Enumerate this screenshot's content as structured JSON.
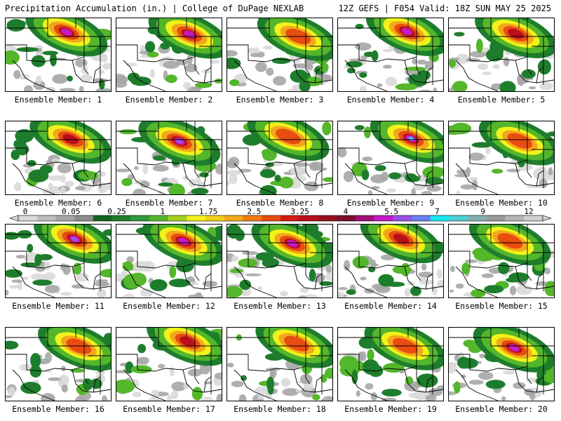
{
  "header": {
    "left": "Precipitation Accumulation (in.) | College of DuPage NEXLAB",
    "right": "12Z GEFS | F054 Valid: 18Z SUN MAY 25 2025"
  },
  "colorbar": {
    "tick_labels": [
      "0",
      "0.05",
      "0.25",
      "1",
      "1.75",
      "2.5",
      "3.25",
      "4",
      "5.5",
      "7",
      "9",
      "12"
    ],
    "colors": [
      "#d9d9d9",
      "#bfbfbf",
      "#a6a6a6",
      "#8c8c8c",
      "#12651f",
      "#1e7d2c",
      "#2e9a3c",
      "#54b62b",
      "#a3d11f",
      "#f2f21a",
      "#f2cf1a",
      "#f2a81a",
      "#f07c12",
      "#e84c0f",
      "#d61a14",
      "#b80f1a",
      "#96101e",
      "#7a1029",
      "#a1107a",
      "#c41ac4",
      "#9a50e6",
      "#6a7ff2",
      "#1ae6f2",
      "#4fcfcf",
      "#7fb0b0",
      "#9a9a9a",
      "#b5b5b5",
      "#d0d0d0"
    ]
  },
  "map": {
    "colors": {
      "g1": "#d9d9d9",
      "g2": "#a6a6a6",
      "green1": "#1e7d2c",
      "green2": "#54b62b",
      "yellow": "#f2f21a",
      "orange": "#f2a81a",
      "red": "#e84c0f",
      "darkred": "#b80f1a",
      "magenta": "#c41ac4",
      "purple": "#9a50e6",
      "cyan": "#1ae6f2",
      "boundary": "#000000"
    },
    "panels": [
      {
        "label": "Ensemble Member: 1",
        "max": 5.5
      },
      {
        "label": "Ensemble Member: 2",
        "max": 5.5
      },
      {
        "label": "Ensemble Member: 3",
        "max": 3.25
      },
      {
        "label": "Ensemble Member: 4",
        "max": 5.5
      },
      {
        "label": "Ensemble Member: 5",
        "max": 4
      },
      {
        "label": "Ensemble Member: 6",
        "max": 4
      },
      {
        "label": "Ensemble Member: 7",
        "max": 7
      },
      {
        "label": "Ensemble Member: 8",
        "max": 3.25
      },
      {
        "label": "Ensemble Member: 9",
        "max": 9
      },
      {
        "label": "Ensemble Member: 10",
        "max": 3.25
      },
      {
        "label": "Ensemble Member: 11",
        "max": 7
      },
      {
        "label": "Ensemble Member: 12",
        "max": 5.5
      },
      {
        "label": "Ensemble Member: 13",
        "max": 5.5
      },
      {
        "label": "Ensemble Member: 14",
        "max": 4
      },
      {
        "label": "Ensemble Member: 15",
        "max": 3.25
      },
      {
        "label": "Ensemble Member: 16",
        "max": 2.5
      },
      {
        "label": "Ensemble Member: 17",
        "max": 4
      },
      {
        "label": "Ensemble Member: 18",
        "max": 2.5
      },
      {
        "label": "Ensemble Member: 19",
        "max": 3.25
      },
      {
        "label": "Ensemble Member: 20",
        "max": 5.5
      }
    ]
  }
}
